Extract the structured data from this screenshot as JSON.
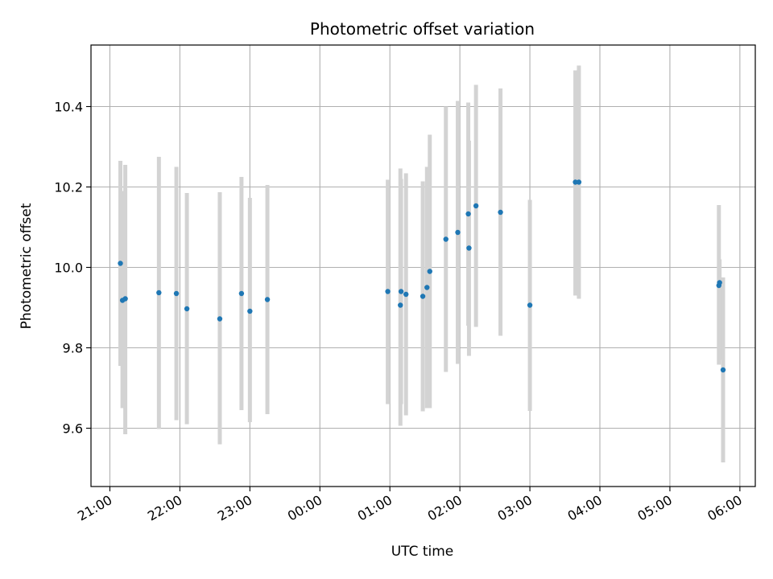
{
  "chart_data": {
    "type": "scatter",
    "title": "Photometric offset variation",
    "xlabel": "UTC time",
    "ylabel": "Photometric offset",
    "x_unit": "hours since 21:00 UTC",
    "xlim": [
      -0.27,
      9.22
    ],
    "ylim": [
      9.455,
      10.553
    ],
    "grid": true,
    "error_bar_color": "#d3d3d3",
    "point_color": "#1f77b4",
    "x_ticks": [
      {
        "value": 0,
        "label": "21:00"
      },
      {
        "value": 1,
        "label": "22:00"
      },
      {
        "value": 2,
        "label": "23:00"
      },
      {
        "value": 3,
        "label": "00:00"
      },
      {
        "value": 4,
        "label": "01:00"
      },
      {
        "value": 5,
        "label": "02:00"
      },
      {
        "value": 6,
        "label": "03:00"
      },
      {
        "value": 7,
        "label": "04:00"
      },
      {
        "value": 8,
        "label": "05:00"
      },
      {
        "value": 9,
        "label": "06:00"
      }
    ],
    "y_ticks": [
      {
        "value": 9.6,
        "label": "9.6"
      },
      {
        "value": 9.8,
        "label": "9.8"
      },
      {
        "value": 10.0,
        "label": "10.0"
      },
      {
        "value": 10.2,
        "label": "10.2"
      },
      {
        "value": 10.4,
        "label": "10.4"
      }
    ],
    "series": [
      {
        "points": [
          {
            "x": 0.15,
            "y": 10.01,
            "ylow": 9.755,
            "yhigh": 10.265
          },
          {
            "x": 0.18,
            "y": 9.918,
            "ylow": 9.65,
            "yhigh": 10.19
          },
          {
            "x": 0.22,
            "y": 9.922,
            "ylow": 9.585,
            "yhigh": 10.255
          },
          {
            "x": 0.7,
            "y": 9.937,
            "ylow": 9.598,
            "yhigh": 10.275
          },
          {
            "x": 0.95,
            "y": 9.935,
            "ylow": 9.62,
            "yhigh": 10.25
          },
          {
            "x": 1.1,
            "y": 9.897,
            "ylow": 9.61,
            "yhigh": 10.185
          },
          {
            "x": 1.57,
            "y": 9.872,
            "ylow": 9.56,
            "yhigh": 10.187
          },
          {
            "x": 1.88,
            "y": 9.935,
            "ylow": 9.645,
            "yhigh": 10.225
          },
          {
            "x": 2.0,
            "y": 9.891,
            "ylow": 9.615,
            "yhigh": 10.173
          },
          {
            "x": 2.25,
            "y": 9.92,
            "ylow": 9.635,
            "yhigh": 10.205
          },
          {
            "x": 3.97,
            "y": 9.94,
            "ylow": 9.66,
            "yhigh": 10.218
          },
          {
            "x": 4.15,
            "y": 9.906,
            "ylow": 9.606,
            "yhigh": 10.246
          },
          {
            "x": 4.16,
            "y": 9.94,
            "ylow": 9.66,
            "yhigh": 10.22
          },
          {
            "x": 4.23,
            "y": 9.933,
            "ylow": 9.632,
            "yhigh": 10.234
          },
          {
            "x": 4.47,
            "y": 9.928,
            "ylow": 9.642,
            "yhigh": 10.214
          },
          {
            "x": 4.53,
            "y": 9.95,
            "ylow": 9.65,
            "yhigh": 10.25
          },
          {
            "x": 4.57,
            "y": 9.99,
            "ylow": 9.65,
            "yhigh": 10.33
          },
          {
            "x": 4.8,
            "y": 10.07,
            "ylow": 9.74,
            "yhigh": 10.4
          },
          {
            "x": 4.97,
            "y": 10.087,
            "ylow": 9.76,
            "yhigh": 10.414
          },
          {
            "x": 5.12,
            "y": 10.133,
            "ylow": 9.855,
            "yhigh": 10.41
          },
          {
            "x": 5.13,
            "y": 10.048,
            "ylow": 9.78,
            "yhigh": 10.315
          },
          {
            "x": 5.23,
            "y": 10.153,
            "ylow": 9.852,
            "yhigh": 10.454
          },
          {
            "x": 5.58,
            "y": 10.137,
            "ylow": 9.83,
            "yhigh": 10.445
          },
          {
            "x": 6.0,
            "y": 9.906,
            "ylow": 9.643,
            "yhigh": 10.168
          },
          {
            "x": 6.65,
            "y": 10.212,
            "ylow": 9.93,
            "yhigh": 10.49
          },
          {
            "x": 6.7,
            "y": 10.212,
            "ylow": 9.922,
            "yhigh": 10.502
          },
          {
            "x": 8.7,
            "y": 9.955,
            "ylow": 9.758,
            "yhigh": 10.155
          },
          {
            "x": 8.71,
            "y": 9.962,
            "ylow": 9.77,
            "yhigh": 10.02
          },
          {
            "x": 8.76,
            "y": 9.745,
            "ylow": 9.515,
            "yhigh": 9.975
          }
        ]
      }
    ]
  }
}
